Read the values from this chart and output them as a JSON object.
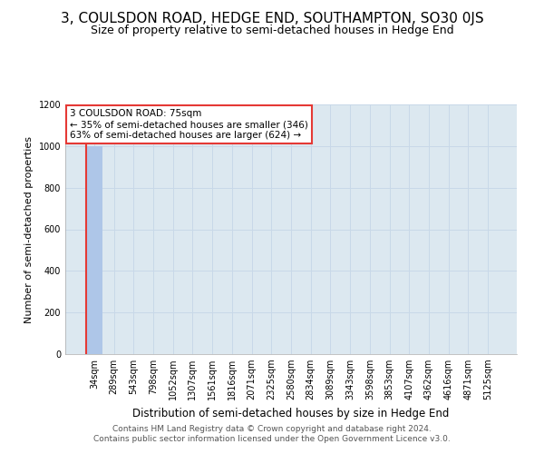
{
  "title": "3, COULSDON ROAD, HEDGE END, SOUTHAMPTON, SO30 0JS",
  "subtitle": "Size of property relative to semi-detached houses in Hedge End",
  "xlabel": "Distribution of semi-detached houses by size in Hedge End",
  "ylabel": "Number of semi-detached properties",
  "footer_line1": "Contains HM Land Registry data © Crown copyright and database right 2024.",
  "footer_line2": "Contains public sector information licensed under the Open Government Licence v3.0.",
  "categories": [
    "34sqm",
    "289sqm",
    "543sqm",
    "798sqm",
    "1052sqm",
    "1307sqm",
    "1561sqm",
    "1816sqm",
    "2071sqm",
    "2325sqm",
    "2580sqm",
    "2834sqm",
    "3089sqm",
    "3343sqm",
    "3598sqm",
    "3853sqm",
    "4107sqm",
    "4362sqm",
    "4616sqm",
    "4871sqm",
    "5125sqm"
  ],
  "values": [
    1000,
    0,
    0,
    0,
    0,
    0,
    0,
    0,
    0,
    0,
    0,
    0,
    0,
    0,
    0,
    0,
    0,
    0,
    0,
    0,
    0
  ],
  "bar_color": "#aec6e8",
  "highlight_bar_edge_color": "#e53935",
  "ylim": [
    0,
    1200
  ],
  "yticks": [
    0,
    200,
    400,
    600,
    800,
    1000,
    1200
  ],
  "grid_color": "#c8d8e8",
  "background_color": "#dce8f0",
  "annotation_text_line1": "3 COULSDON ROAD: 75sqm",
  "annotation_text_line2": "← 35% of semi-detached houses are smaller (346)",
  "annotation_text_line3": "63% of semi-detached houses are larger (624) →",
  "annotation_box_color": "#ffffff",
  "annotation_box_edge_color": "#e53935",
  "title_fontsize": 11,
  "subtitle_fontsize": 9,
  "axis_label_fontsize": 8,
  "tick_fontsize": 7,
  "footer_fontsize": 6.5,
  "annotation_fontsize": 7.5
}
